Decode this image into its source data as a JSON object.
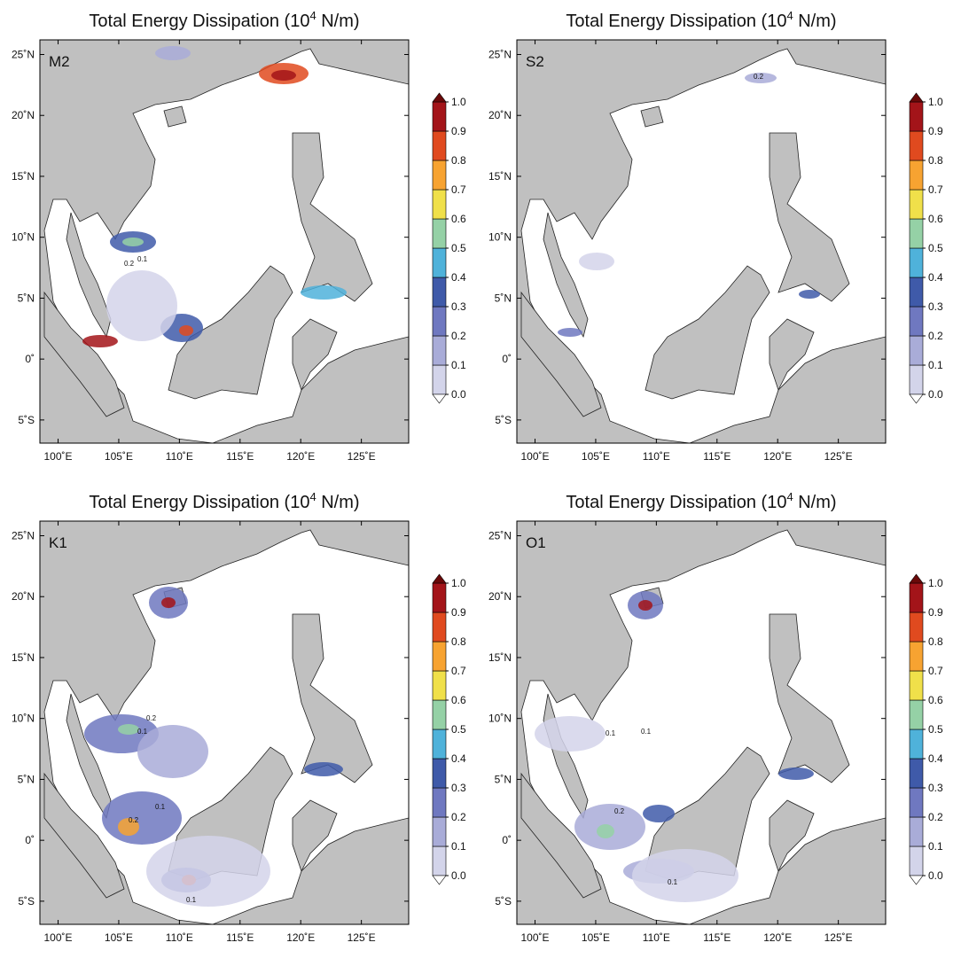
{
  "panels": [
    {
      "title": {
        "text": "Total Energy Dissipation (10",
        "sup": "4",
        "unit": " N/m)"
      },
      "label": "M2",
      "xlim": [
        98.5,
        128.9
      ],
      "ylim": [
        -6.9,
        26.2
      ],
      "xticks": [
        {
          "value": 100,
          "label": "100˚E"
        },
        {
          "value": 105,
          "label": "105˚E"
        },
        {
          "value": 110,
          "label": "110˚E"
        },
        {
          "value": 115,
          "label": "115˚E"
        },
        {
          "value": 120,
          "label": "120˚E"
        },
        {
          "value": 125,
          "label": "125˚E"
        }
      ],
      "yticks": [
        {
          "value": 25,
          "label": "25˚N"
        },
        {
          "value": 20,
          "label": "20˚N"
        },
        {
          "value": 15,
          "label": "15˚N"
        },
        {
          "value": 10,
          "label": "10˚N"
        },
        {
          "value": 5,
          "label": "5˚N"
        },
        {
          "value": 0,
          "label": "0˚"
        },
        {
          "value": -5,
          "label": "5˚S"
        }
      ],
      "colorbar": {
        "lim": [
          0,
          1
        ],
        "ticks": [
          {
            "value": 0,
            "label": "0.0"
          },
          0.1,
          0.2,
          0.3,
          0.4,
          0.5,
          0.6,
          0.7,
          0.8,
          0.9,
          {
            "value": 1,
            "label": "1.0"
          }
        ],
        "colors": [
          "#f3f3f9",
          "#d3d4ea",
          "#a9acd8",
          "#6f78c0",
          "#3f5aa9",
          "#4fb2da",
          "#95d1a6",
          "#f0e04a",
          "#f7a331",
          "#e04a1f",
          "#a31419"
        ],
        "over": "#6a0909",
        "under": "#ffffff"
      },
      "contour_labels": [
        "0.1",
        "0.2"
      ]
    },
    {
      "title": {
        "text": "Total Energy Dissipation (10",
        "sup": "4",
        "unit": " N/m)"
      },
      "label": "S2",
      "xlim": [
        98.5,
        128.9
      ],
      "ylim": [
        -6.9,
        26.2
      ],
      "xticks": [
        {
          "value": 100,
          "label": "100˚E"
        },
        {
          "value": 105,
          "label": "105˚E"
        },
        {
          "value": 110,
          "label": "110˚E"
        },
        {
          "value": 115,
          "label": "115˚E"
        },
        {
          "value": 120,
          "label": "120˚E"
        },
        {
          "value": 125,
          "label": "125˚E"
        }
      ],
      "yticks": [
        {
          "value": 25,
          "label": "25˚N"
        },
        {
          "value": 20,
          "label": "20˚N"
        },
        {
          "value": 15,
          "label": "15˚N"
        },
        {
          "value": 10,
          "label": "10˚N"
        },
        {
          "value": 5,
          "label": "5˚N"
        },
        {
          "value": 0,
          "label": "0˚"
        },
        {
          "value": -5,
          "label": "5˚S"
        }
      ],
      "colorbar": {
        "lim": [
          0,
          1
        ],
        "ticks": [
          {
            "value": 0,
            "label": "0.0"
          },
          0.1,
          0.2,
          0.3,
          0.4,
          0.5,
          0.6,
          0.7,
          0.8,
          0.9,
          {
            "value": 1,
            "label": "1.0"
          }
        ],
        "colors": [
          "#f3f3f9",
          "#d3d4ea",
          "#a9acd8",
          "#6f78c0",
          "#3f5aa9",
          "#4fb2da",
          "#95d1a6",
          "#f0e04a",
          "#f7a331",
          "#e04a1f",
          "#a31419"
        ],
        "over": "#6a0909",
        "under": "#ffffff"
      },
      "contour_labels": [
        "0.2"
      ]
    },
    {
      "title": {
        "text": "Total Energy Dissipation (10",
        "sup": "4",
        "unit": " N/m)"
      },
      "label": "K1",
      "xlim": [
        98.5,
        128.9
      ],
      "ylim": [
        -6.9,
        26.2
      ],
      "xticks": [
        {
          "value": 100,
          "label": "100˚E"
        },
        {
          "value": 105,
          "label": "105˚E"
        },
        {
          "value": 110,
          "label": "110˚E"
        },
        {
          "value": 115,
          "label": "115˚E"
        },
        {
          "value": 120,
          "label": "120˚E"
        },
        {
          "value": 125,
          "label": "125˚E"
        }
      ],
      "yticks": [
        {
          "value": 25,
          "label": "25˚N"
        },
        {
          "value": 20,
          "label": "20˚N"
        },
        {
          "value": 15,
          "label": "15˚N"
        },
        {
          "value": 10,
          "label": "10˚N"
        },
        {
          "value": 5,
          "label": "5˚N"
        },
        {
          "value": 0,
          "label": "0˚"
        },
        {
          "value": -5,
          "label": "5˚S"
        }
      ],
      "colorbar": {
        "lim": [
          0,
          1
        ],
        "ticks": [
          {
            "value": 0,
            "label": "0.0"
          },
          0.1,
          0.2,
          0.3,
          0.4,
          0.5,
          0.6,
          0.7,
          0.8,
          0.9,
          {
            "value": 1,
            "label": "1.0"
          }
        ],
        "colors": [
          "#f3f3f9",
          "#d3d4ea",
          "#a9acd8",
          "#6f78c0",
          "#3f5aa9",
          "#4fb2da",
          "#95d1a6",
          "#f0e04a",
          "#f7a331",
          "#e04a1f",
          "#a31419"
        ],
        "over": "#6a0909",
        "under": "#ffffff"
      },
      "contour_labels": [
        "0.2",
        "0.1",
        "0.1",
        "0.2",
        "0.1"
      ]
    },
    {
      "title": {
        "text": "Total Energy Dissipation (10",
        "sup": "4",
        "unit": " N/m)"
      },
      "label": "O1",
      "xlim": [
        98.5,
        128.9
      ],
      "ylim": [
        -6.9,
        26.2
      ],
      "xticks": [
        {
          "value": 100,
          "label": "100˚E"
        },
        {
          "value": 105,
          "label": "105˚E"
        },
        {
          "value": 110,
          "label": "110˚E"
        },
        {
          "value": 115,
          "label": "115˚E"
        },
        {
          "value": 120,
          "label": "120˚E"
        },
        {
          "value": 125,
          "label": "125˚E"
        }
      ],
      "yticks": [
        {
          "value": 25,
          "label": "25˚N"
        },
        {
          "value": 20,
          "label": "20˚N"
        },
        {
          "value": 15,
          "label": "15˚N"
        },
        {
          "value": 10,
          "label": "10˚N"
        },
        {
          "value": 5,
          "label": "5˚N"
        },
        {
          "value": 0,
          "label": "0˚"
        },
        {
          "value": -5,
          "label": "5˚S"
        }
      ],
      "colorbar": {
        "lim": [
          0,
          1
        ],
        "ticks": [
          {
            "value": 0,
            "label": "0.0"
          },
          0.1,
          0.2,
          0.3,
          0.4,
          0.5,
          0.6,
          0.7,
          0.8,
          0.9,
          {
            "value": 1,
            "label": "1.0"
          }
        ],
        "colors": [
          "#f3f3f9",
          "#d3d4ea",
          "#a9acd8",
          "#6f78c0",
          "#3f5aa9",
          "#4fb2da",
          "#95d1a6",
          "#f0e04a",
          "#f7a331",
          "#e04a1f",
          "#a31419"
        ],
        "over": "#6a0909",
        "under": "#ffffff"
      },
      "contour_labels": [
        "0.1",
        "0.1",
        "0.2",
        "0.1"
      ]
    }
  ]
}
